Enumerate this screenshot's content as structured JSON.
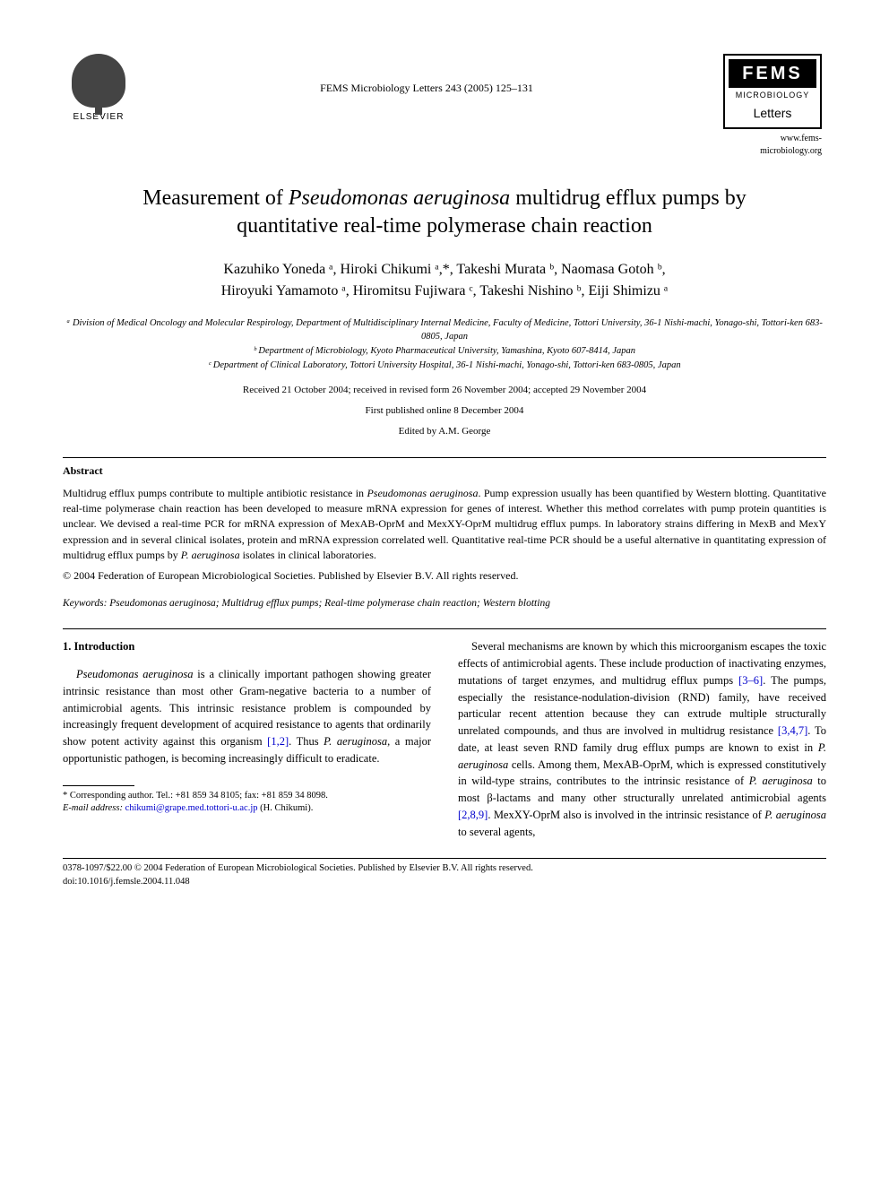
{
  "header": {
    "elsevier_label": "ELSEVIER",
    "journal_ref": "FEMS Microbiology Letters 243 (2005) 125–131",
    "fems_top": "FEMS",
    "fems_mid": "MICROBIOLOGY",
    "fems_bottom": "Letters",
    "fems_url": "www.fems-microbiology.org"
  },
  "title": "Measurement of Pseudomonas aeruginosa multidrug efflux pumps by quantitative real-time polymerase chain reaction",
  "authors_line1": "Kazuhiko Yoneda ᵃ, Hiroki Chikumi ᵃ,*, Takeshi Murata ᵇ, Naomasa Gotoh ᵇ,",
  "authors_line2": "Hiroyuki Yamamoto ᵃ, Hiromitsu Fujiwara ᶜ, Takeshi Nishino ᵇ, Eiji Shimizu ᵃ",
  "affiliations": {
    "a": "ᵃ Division of Medical Oncology and Molecular Respirology, Department of Multidisciplinary Internal Medicine, Faculty of Medicine, Tottori University, 36-1 Nishi-machi, Yonago-shi, Tottori-ken 683-0805, Japan",
    "b": "ᵇ Department of Microbiology, Kyoto Pharmaceutical University, Yamashina, Kyoto 607-8414, Japan",
    "c": "ᶜ Department of Clinical Laboratory, Tottori University Hospital, 36-1 Nishi-machi, Yonago-shi, Tottori-ken 683-0805, Japan"
  },
  "dates": "Received 21 October 2004; received in revised form 26 November 2004; accepted 29 November 2004",
  "pub_online": "First published online 8 December 2004",
  "edited_by": "Edited by A.M. George",
  "abstract": {
    "heading": "Abstract",
    "body": "Multidrug efflux pumps contribute to multiple antibiotic resistance in Pseudomonas aeruginosa. Pump expression usually has been quantified by Western blotting. Quantitative real-time polymerase chain reaction has been developed to measure mRNA expression for genes of interest. Whether this method correlates with pump protein quantities is unclear. We devised a real-time PCR for mRNA expression of MexAB-OprM and MexXY-OprM multidrug efflux pumps. In laboratory strains differing in MexB and MexY expression and in several clinical isolates, protein and mRNA expression correlated well. Quantitative real-time PCR should be a useful alternative in quantitating expression of multidrug efflux pumps by P. aeruginosa isolates in clinical laboratories.",
    "copyright": "© 2004 Federation of European Microbiological Societies. Published by Elsevier B.V. All rights reserved."
  },
  "keywords": {
    "label": "Keywords:",
    "list": "Pseudomonas aeruginosa; Multidrug efflux pumps; Real-time polymerase chain reaction; Western blotting"
  },
  "intro": {
    "heading": "1. Introduction",
    "p1a": "Pseudomonas aeruginosa",
    "p1b": " is a clinically important pathogen showing greater intrinsic resistance than most other Gram-negative bacteria to a number of antimicrobial agents. This intrinsic resistance problem is compounded by increasingly frequent development of acquired resistance to agents that ordinarily show potent activity against this organism ",
    "p1_ref1": "[1,2]",
    "p1c": ". Thus ",
    "p1d": "P. aeruginosa",
    "p1e": ", a major opportunistic pathogen, is becoming increasingly difficult to eradicate.",
    "p2a": "Several mechanisms are known by which this microorganism escapes the toxic effects of antimicrobial agents. These include production of inactivating enzymes, mutations of target enzymes, and multidrug efflux pumps ",
    "p2_ref1": "[3–6]",
    "p2b": ". The pumps, especially the resistance-nodulation-division (RND) family, have received particular recent attention because they can extrude multiple structurally unrelated compounds, and thus are involved in multidrug resistance ",
    "p2_ref2": "[3,4,7]",
    "p2c": ". To date, at least seven RND family drug efflux pumps are known to exist in ",
    "p2d": "P. aeruginosa",
    "p2e": " cells. Among them, MexAB-OprM, which is expressed constitutively in wild-type strains, contributes to the intrinsic resistance of ",
    "p2f": "P. aeruginosa",
    "p2g": " to most β-lactams and many other structurally unrelated antimicrobial agents ",
    "p2_ref3": "[2,8,9]",
    "p2h": ". MexXY-OprM also is involved in the intrinsic resistance of ",
    "p2i": "P. aeruginosa",
    "p2j": " to several agents,"
  },
  "footnote": {
    "corr": "* Corresponding author. Tel.: +81 859 34 8105; fax: +81 859 34 8098.",
    "email_label": "E-mail address:",
    "email": "chikumi@grape.med.tottori-u.ac.jp",
    "email_who": "(H. Chikumi)."
  },
  "bottom": {
    "issn": "0378-1097/$22.00 © 2004 Federation of European Microbiological Societies. Published by Elsevier B.V. All rights reserved.",
    "doi": "doi:10.1016/j.femsle.2004.11.048"
  }
}
